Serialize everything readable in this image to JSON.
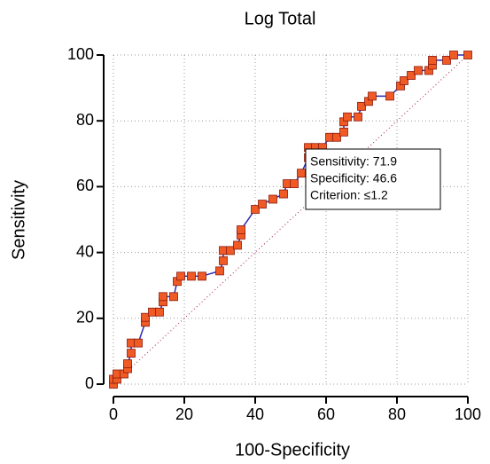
{
  "chart_data": {
    "type": "line",
    "title": "Log Total",
    "x_label": "100-Specificity",
    "y_label": "Sensitivity",
    "x": [
      0,
      0,
      1,
      1,
      3,
      4,
      4,
      5,
      5,
      7,
      9,
      9,
      11,
      13,
      14,
      14,
      17,
      18,
      19,
      22,
      25,
      30,
      31,
      31,
      33,
      35,
      36,
      36,
      40,
      42,
      45,
      48,
      49,
      51,
      53,
      55,
      55,
      57,
      59,
      61,
      63,
      65,
      65,
      66,
      69,
      70,
      72,
      73,
      78,
      81,
      82,
      84,
      86,
      89,
      90,
      90,
      94,
      96,
      100
    ],
    "values": [
      0,
      1.5,
      1.5,
      3.1,
      3.1,
      4.7,
      6.2,
      9.4,
      12.5,
      12.5,
      18.8,
      20.3,
      21.9,
      21.9,
      25,
      26.6,
      26.6,
      31.2,
      32.8,
      32.8,
      32.8,
      34.4,
      37.5,
      40.6,
      40.6,
      42.2,
      45.3,
      46.9,
      53.1,
      54.7,
      56.2,
      57.8,
      60.9,
      60.9,
      64.1,
      68.8,
      71.9,
      71.9,
      71.9,
      75,
      75,
      76.6,
      79.7,
      81.2,
      81.2,
      84.4,
      85.9,
      87.5,
      87.5,
      90.6,
      92.2,
      93.8,
      95.3,
      95.3,
      96.9,
      98.4,
      98.4,
      100,
      100
    ],
    "line_color": "#2b2bb5",
    "marker_color": "#f05a24",
    "xlim": [
      0,
      100
    ],
    "ylim": [
      0,
      100
    ],
    "xticks": [
      0,
      20,
      40,
      60,
      80,
      100
    ],
    "yticks": [
      0,
      20,
      40,
      60,
      80,
      100
    ],
    "grid": true,
    "annotation": [
      "Sensitivity: 71.9",
      "Specificity: 46.6",
      "Criterion: ≤1.2"
    ]
  }
}
